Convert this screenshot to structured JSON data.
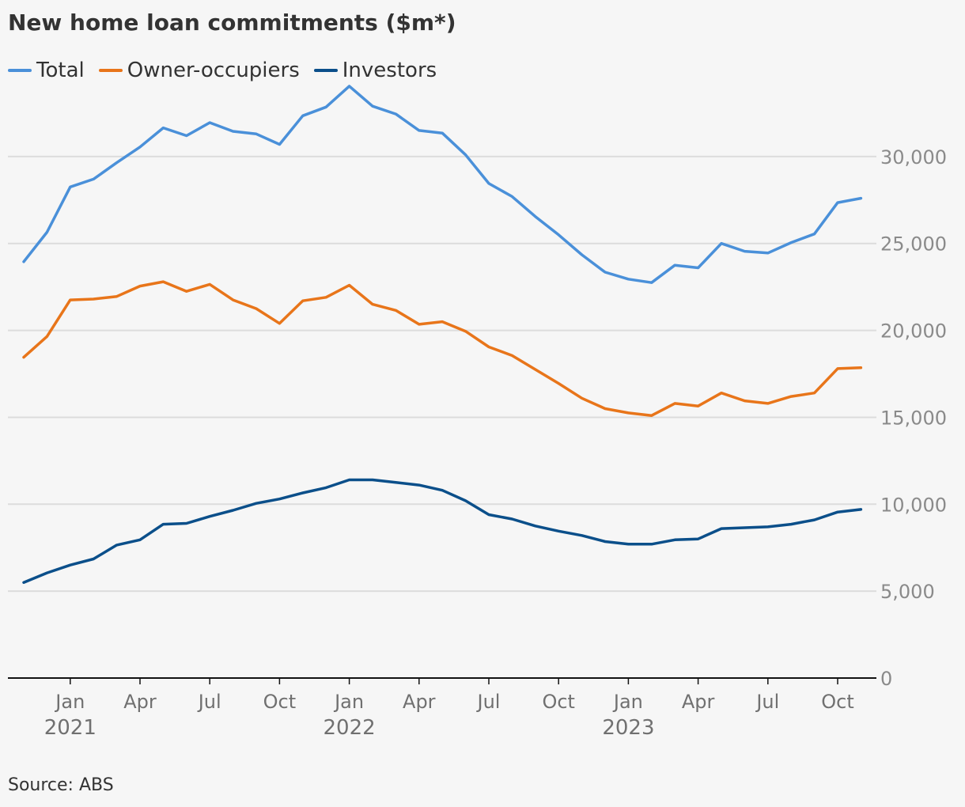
{
  "title": "New home loan commitments ($m*)",
  "source": "Source: ABS",
  "chart_data": {
    "type": "line",
    "title": "New home loan commitments ($m*)",
    "xlabel": "",
    "ylabel": "",
    "x_start": "2020-11",
    "x": [
      "2020-11",
      "2020-12",
      "2021-01",
      "2021-02",
      "2021-03",
      "2021-04",
      "2021-05",
      "2021-06",
      "2021-07",
      "2021-08",
      "2021-09",
      "2021-10",
      "2021-11",
      "2021-12",
      "2022-01",
      "2022-02",
      "2022-03",
      "2022-04",
      "2022-05",
      "2022-06",
      "2022-07",
      "2022-08",
      "2022-09",
      "2022-10",
      "2022-11",
      "2022-12",
      "2023-01",
      "2023-02",
      "2023-03",
      "2023-04",
      "2023-05",
      "2023-06",
      "2023-07",
      "2023-08",
      "2023-09",
      "2023-10",
      "2023-11"
    ],
    "ylim": [
      0,
      34000
    ],
    "y_ticks": [
      0,
      5000,
      10000,
      15000,
      20000,
      25000,
      30000
    ],
    "y_tick_labels": [
      "0",
      "5,000",
      "10,000",
      "15,000",
      "20,000",
      "25,000",
      "30,000"
    ],
    "x_ticks": [
      {
        "date": "2021-01",
        "label": "Jan",
        "year": "2021"
      },
      {
        "date": "2021-04",
        "label": "Apr",
        "year": ""
      },
      {
        "date": "2021-07",
        "label": "Jul",
        "year": ""
      },
      {
        "date": "2021-10",
        "label": "Oct",
        "year": ""
      },
      {
        "date": "2022-01",
        "label": "Jan",
        "year": "2022"
      },
      {
        "date": "2022-04",
        "label": "Apr",
        "year": ""
      },
      {
        "date": "2022-07",
        "label": "Jul",
        "year": ""
      },
      {
        "date": "2022-10",
        "label": "Oct",
        "year": ""
      },
      {
        "date": "2023-01",
        "label": "Jan",
        "year": "2023"
      },
      {
        "date": "2023-04",
        "label": "Apr",
        "year": ""
      },
      {
        "date": "2023-07",
        "label": "Jul",
        "year": ""
      },
      {
        "date": "2023-10",
        "label": "Oct",
        "year": ""
      }
    ],
    "grid": true,
    "legend_position": "top-left",
    "series": [
      {
        "name": "Total",
        "color": "#4a90d9",
        "values": [
          23950,
          25650,
          28250,
          28700,
          29650,
          30550,
          31650,
          31200,
          31950,
          31450,
          31300,
          30700,
          32350,
          32850,
          34050,
          32900,
          32450,
          31500,
          31350,
          30100,
          28450,
          27700,
          26550,
          25500,
          24350,
          23350,
          22950,
          22750,
          23750,
          23600,
          25000,
          24550,
          24450,
          25050,
          25550,
          27350,
          27600
        ]
      },
      {
        "name": "Owner-occupiers",
        "color": "#e8751a",
        "values": [
          18450,
          19650,
          21750,
          21800,
          21950,
          22550,
          22800,
          22250,
          22650,
          21750,
          21250,
          20400,
          21700,
          21900,
          22600,
          21500,
          21150,
          20350,
          20500,
          19950,
          19050,
          18550,
          17750,
          16950,
          16100,
          15500,
          15250,
          15100,
          15800,
          15650,
          16400,
          15950,
          15800,
          16200,
          16400,
          17800,
          17850
        ]
      },
      {
        "name": "Investors",
        "color": "#0b4f8a",
        "values": [
          5500,
          6050,
          6500,
          6850,
          7650,
          7950,
          8850,
          8900,
          9300,
          9650,
          10050,
          10300,
          10650,
          10950,
          11400,
          11400,
          11250,
          11100,
          10800,
          10200,
          9400,
          9150,
          8750,
          8450,
          8200,
          7850,
          7700,
          7700,
          7950,
          8000,
          8600,
          8650,
          8700,
          8850,
          9100,
          9550,
          9700
        ]
      }
    ]
  }
}
